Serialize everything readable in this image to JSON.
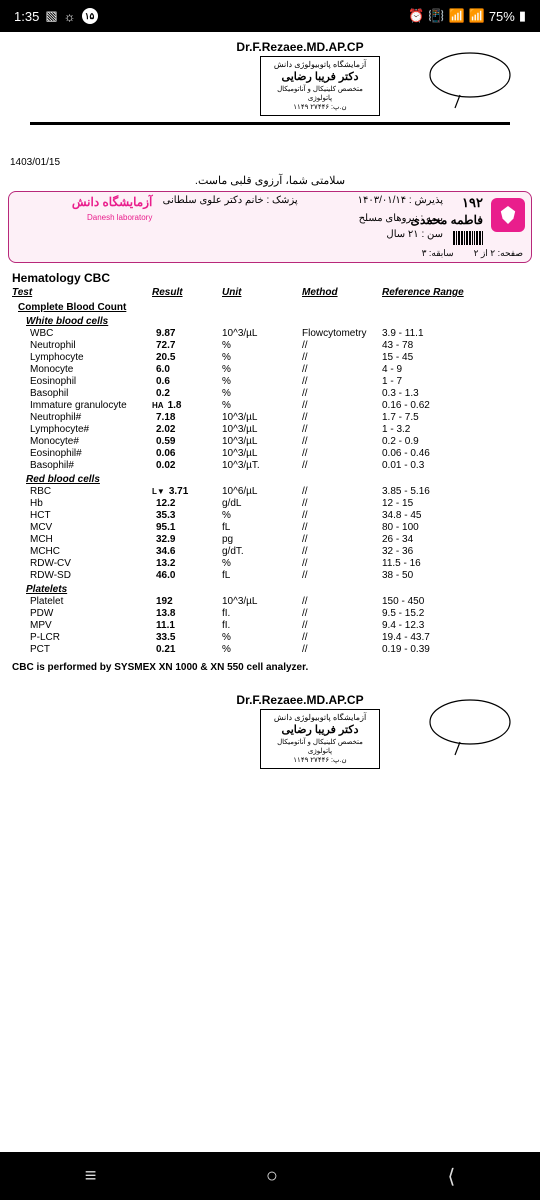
{
  "status": {
    "time": "1:35",
    "badge": "۱۵",
    "battery": "75%"
  },
  "signature": {
    "doctor": "Dr.F.Rezaee.MD.AP.CP",
    "stamp_l1": "آزمایشگاه پاتوبیولوژی دانش",
    "stamp_l2": "دکتر فریبا رضایی",
    "stamp_l3": "متخصص کلینیکال و آناتومیکال پاتولوژی",
    "stamp_l4": "ن.پ: ۲۷۴۴۶  ۱۱۴۹"
  },
  "date": "1403/01/15",
  "slogan": "سلامتی شما، آرزوی قلبی ماست.",
  "info": {
    "brand": "آزمایشگاه دانش",
    "brand_sub": "Danesh laboratory",
    "id": "۱۹۲",
    "name": "فاطمه محمدی",
    "reception_lbl": "پذیرش :",
    "reception": "۱۴۰۳/۰۱/۱۴",
    "doctor_lbl": "پزشک :",
    "doctor": "خانم دکتر علوی سلطانی",
    "insurance_lbl": "بیمه :",
    "insurance": "نیروهای مسلح",
    "age_lbl": "سن :",
    "age": "۲۱ سال",
    "history_lbl": "سابقه:",
    "history": "۳",
    "page_lbl": "صفحه:",
    "page": "۲ از ۲"
  },
  "section": "Hematology CBC",
  "headers": {
    "test": "Test",
    "result": "Result",
    "unit": "Unit",
    "method": "Method",
    "ref": "Reference Range"
  },
  "sub1": "Complete Blood Count",
  "sub_wbc": "White blood cells",
  "sub_rbc": "Red blood cells",
  "sub_plt": "Platelets",
  "rows_wbc": [
    {
      "n": "WBC",
      "r": "9.87",
      "u": "10^3/µL",
      "m": "Flowcytometry",
      "ref": "3.9 - 11.1",
      "f": ""
    },
    {
      "n": "Neutrophil",
      "r": "72.7",
      "u": "%",
      "m": "//",
      "ref": "43 - 78",
      "f": ""
    },
    {
      "n": "Lymphocyte",
      "r": "20.5",
      "u": "%",
      "m": "//",
      "ref": "15 - 45",
      "f": ""
    },
    {
      "n": "Monocyte",
      "r": "6.0",
      "u": "%",
      "m": "//",
      "ref": "4 - 9",
      "f": ""
    },
    {
      "n": "Eosinophil",
      "r": "0.6",
      "u": "%",
      "m": "//",
      "ref": "1 - 7",
      "f": ""
    },
    {
      "n": "Basophil",
      "r": "0.2",
      "u": "%",
      "m": "//",
      "ref": "0.3 - 1.3",
      "f": ""
    },
    {
      "n": "Immature granulocyte",
      "r": "1.8",
      "u": "%",
      "m": "//",
      "ref": "0.16 - 0.62",
      "f": "HA"
    },
    {
      "n": "Neutrophil#",
      "r": "7.18",
      "u": "10^3/µL",
      "m": "//",
      "ref": "1.7 - 7.5",
      "f": ""
    },
    {
      "n": "Lymphocyte#",
      "r": "2.02",
      "u": "10^3/µL",
      "m": "//",
      "ref": "1 - 3.2",
      "f": ""
    },
    {
      "n": "Monocyte#",
      "r": "0.59",
      "u": "10^3/µL",
      "m": "//",
      "ref": "0.2 - 0.9",
      "f": ""
    },
    {
      "n": "Eosinophil#",
      "r": "0.06",
      "u": "10^3/µL",
      "m": "//",
      "ref": "0.06 - 0.46",
      "f": ""
    },
    {
      "n": "Basophil#",
      "r": "0.02",
      "u": "10^3/µT.",
      "m": "//",
      "ref": "0.01 - 0.3",
      "f": ""
    }
  ],
  "rows_rbc": [
    {
      "n": "RBC",
      "r": "3.71",
      "u": "10^6/µL",
      "m": "//",
      "ref": "3.85 - 5.16",
      "f": "L▼"
    },
    {
      "n": "Hb",
      "r": "12.2",
      "u": "g/dL",
      "m": "//",
      "ref": "12 - 15",
      "f": ""
    },
    {
      "n": "HCT",
      "r": "35.3",
      "u": "%",
      "m": "//",
      "ref": "34.8 - 45",
      "f": ""
    },
    {
      "n": "MCV",
      "r": "95.1",
      "u": "fL",
      "m": "//",
      "ref": "80 - 100",
      "f": ""
    },
    {
      "n": "MCH",
      "r": "32.9",
      "u": "pg",
      "m": "//",
      "ref": "26 - 34",
      "f": ""
    },
    {
      "n": "MCHC",
      "r": "34.6",
      "u": "g/dT.",
      "m": "//",
      "ref": "32 - 36",
      "f": ""
    },
    {
      "n": "RDW-CV",
      "r": "13.2",
      "u": "%",
      "m": "//",
      "ref": "11.5 - 16",
      "f": ""
    },
    {
      "n": "RDW-SD",
      "r": "46.0",
      "u": "fL",
      "m": "//",
      "ref": "38 - 50",
      "f": ""
    }
  ],
  "rows_plt": [
    {
      "n": "Platelet",
      "r": "192",
      "u": "10^3/µL",
      "m": "//",
      "ref": "150 - 450",
      "f": ""
    },
    {
      "n": "PDW",
      "r": "13.8",
      "u": "fI.",
      "m": "//",
      "ref": "9.5 - 15.2",
      "f": ""
    },
    {
      "n": "MPV",
      "r": "11.1",
      "u": "fI.",
      "m": "//",
      "ref": "9.4 - 12.3",
      "f": ""
    },
    {
      "n": "P-LCR",
      "r": "33.5",
      "u": "%",
      "m": "//",
      "ref": "19.4 - 43.7",
      "f": ""
    },
    {
      "n": "PCT",
      "r": "0.21",
      "u": "%",
      "m": "//",
      "ref": "0.19 - 0.39",
      "f": ""
    }
  ],
  "note": "CBC is performed by SYSMEX XN 1000 & XN 550 cell analyzer."
}
